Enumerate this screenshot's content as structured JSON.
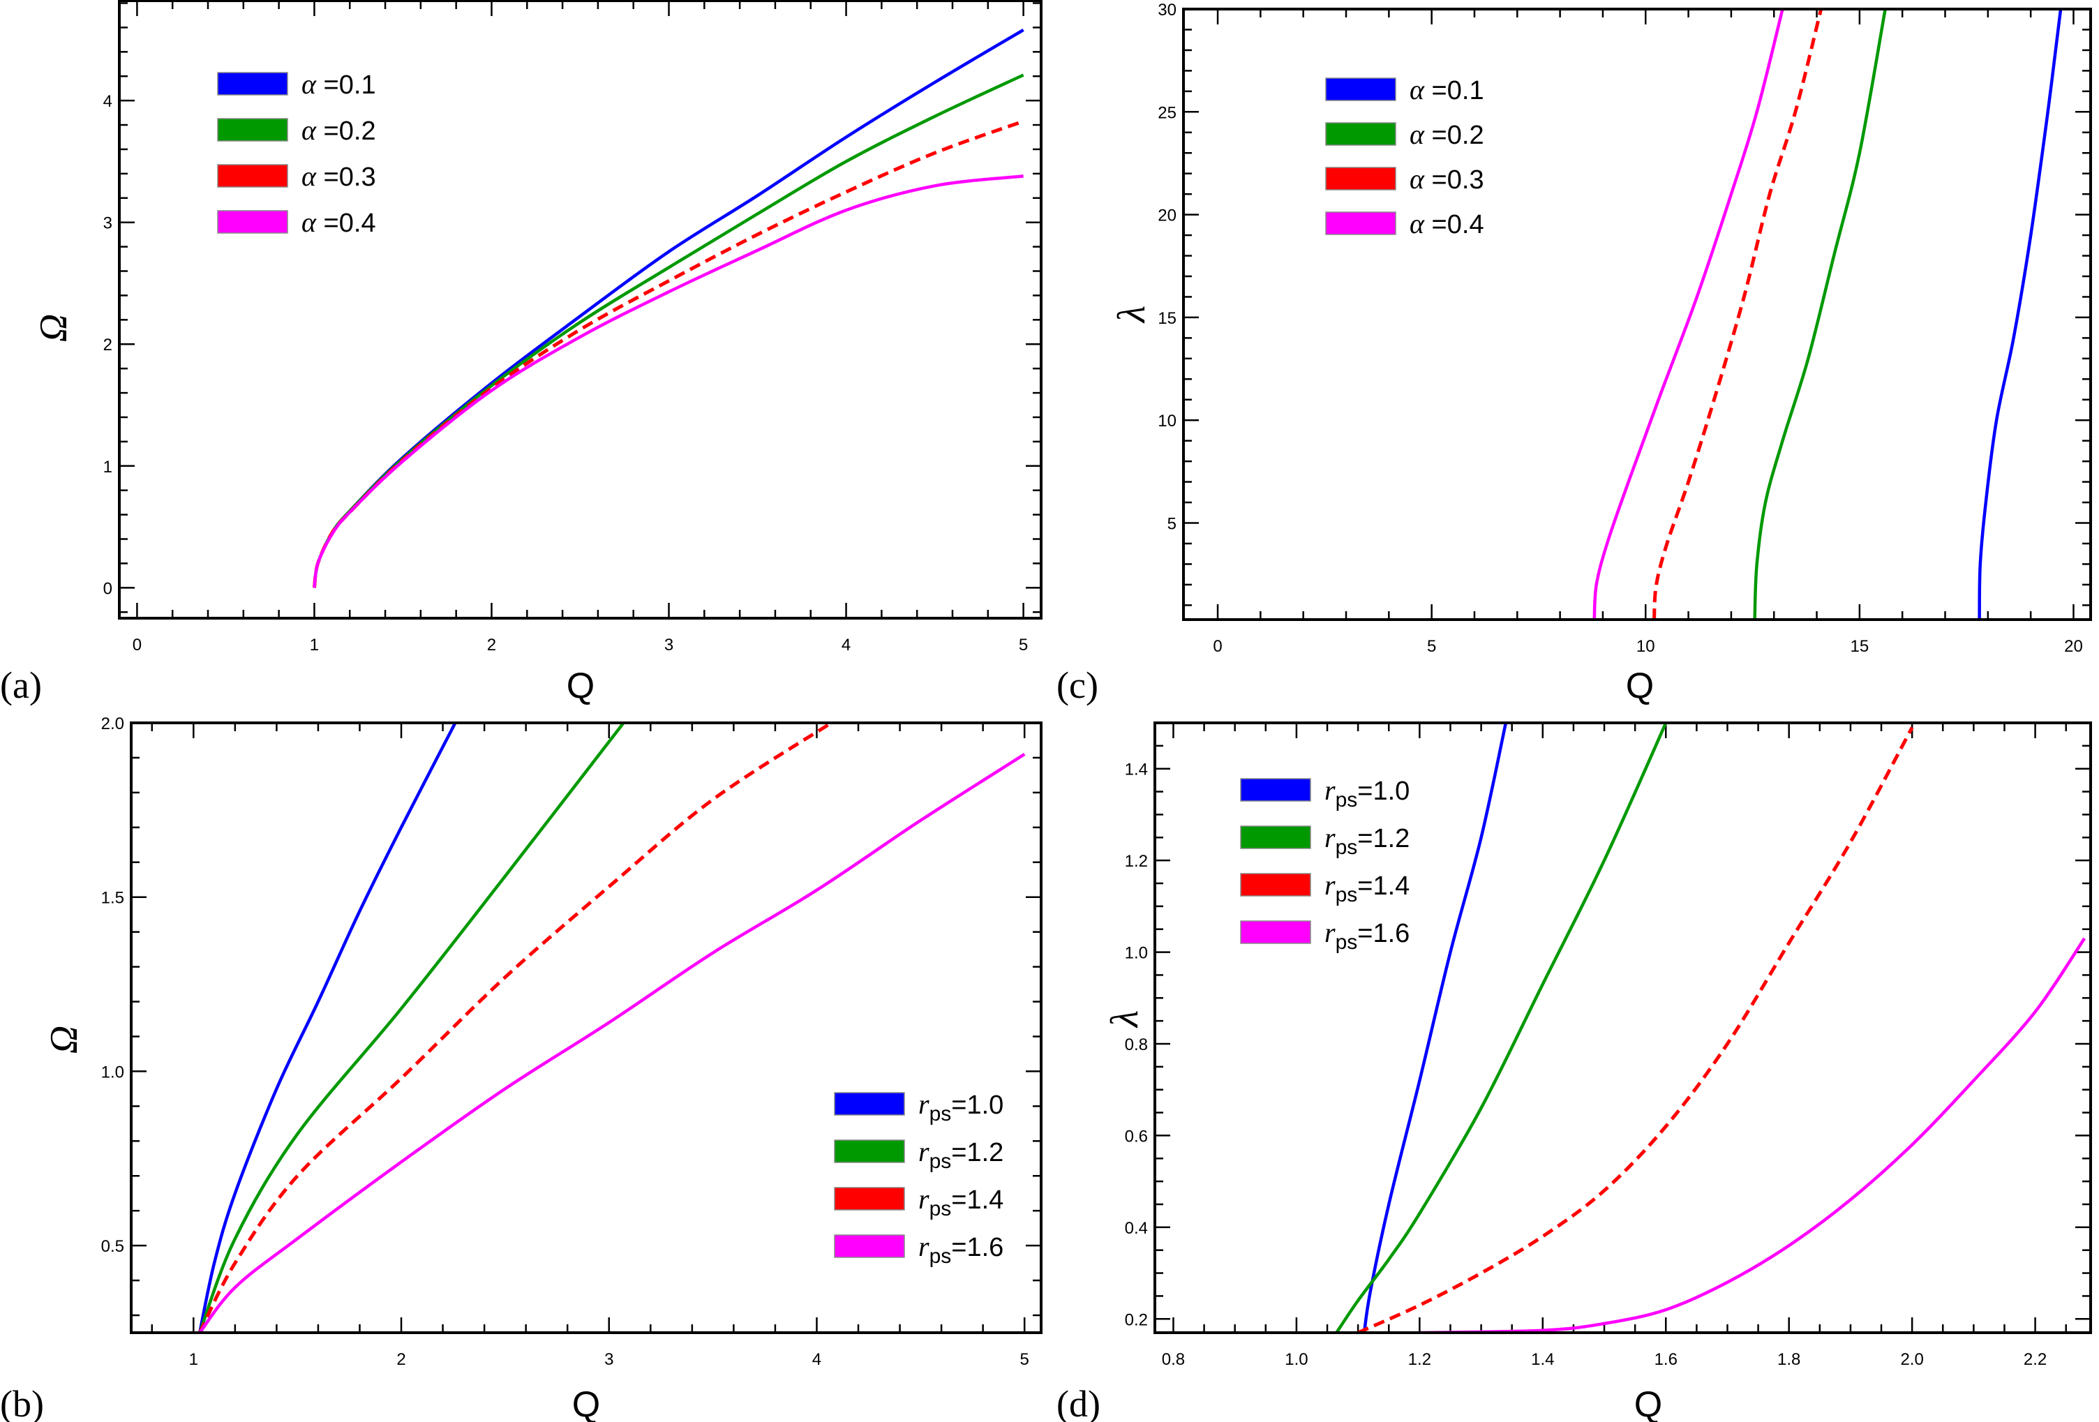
{
  "colors": {
    "blue": "#0000ff",
    "green": "#009900",
    "red": "#ff0000",
    "magenta": "#ff00ff",
    "axis": "#000000"
  },
  "chart_data": [
    {
      "panel_label": "(a)",
      "type": "line",
      "xlabel": "Q",
      "ylabel": "Ω",
      "xlim": [
        -0.1,
        5.1
      ],
      "ylim": [
        -0.25,
        4.82
      ],
      "xticks": [
        0,
        1,
        2,
        3,
        4,
        5
      ],
      "xtick_labels": [
        "0",
        "1",
        "2",
        "3",
        "4",
        "5"
      ],
      "yticks": [
        0,
        1,
        2,
        3,
        4
      ],
      "ytick_labels": [
        "0",
        "1",
        "2",
        "3",
        "4"
      ],
      "x_minor": 0.2,
      "y_minor": 0.2,
      "legend_position": "top-left",
      "legend_symbol": "α",
      "series": [
        {
          "name": "α =0.1",
          "symbol": "α",
          "value_text": " =0.1",
          "color": "#0000ff",
          "dashed": false,
          "x": [
            1,
            1.02,
            1.1,
            1.2,
            1.5,
            2,
            2.5,
            3,
            3.5,
            4,
            4.5,
            5
          ],
          "y": [
            0,
            0.2,
            0.45,
            0.63,
            1.07,
            1.68,
            2.23,
            2.76,
            3.22,
            3.7,
            4.15,
            4.58
          ]
        },
        {
          "name": "α =0.2",
          "symbol": "α",
          "value_text": " =0.2",
          "color": "#009900",
          "dashed": false,
          "x": [
            1,
            1.02,
            1.1,
            1.2,
            1.5,
            2,
            2.5,
            3,
            3.5,
            4,
            4.5,
            5
          ],
          "y": [
            0,
            0.2,
            0.45,
            0.63,
            1.06,
            1.66,
            2.18,
            2.63,
            3.07,
            3.5,
            3.87,
            4.21
          ]
        },
        {
          "name": "α =0.3",
          "symbol": "α",
          "value_text": " =0.3",
          "color": "#ff0000",
          "dashed": true,
          "x": [
            1,
            1.02,
            1.1,
            1.2,
            1.5,
            2,
            2.5,
            3,
            3.5,
            4,
            4.5,
            5
          ],
          "y": [
            0,
            0.2,
            0.45,
            0.62,
            1.05,
            1.64,
            2.12,
            2.52,
            2.9,
            3.25,
            3.57,
            3.83
          ]
        },
        {
          "name": "α =0.4",
          "symbol": "α",
          "value_text": " =0.4",
          "color": "#ff00ff",
          "dashed": false,
          "x": [
            1,
            1.02,
            1.1,
            1.2,
            1.5,
            2,
            2.5,
            3,
            3.5,
            4,
            4.5,
            5
          ],
          "y": [
            0,
            0.2,
            0.44,
            0.62,
            1.04,
            1.62,
            2.06,
            2.43,
            2.77,
            3.1,
            3.3,
            3.38
          ]
        }
      ]
    },
    {
      "panel_label": "(c)",
      "type": "line",
      "xlabel": "Q",
      "ylabel": "λ",
      "xlim": [
        -0.8,
        20.4
      ],
      "ylim": [
        0.3,
        30
      ],
      "xticks": [
        0,
        5,
        10,
        15,
        20
      ],
      "xtick_labels": [
        "0",
        "5",
        "10",
        "15",
        "20"
      ],
      "yticks": [
        5,
        10,
        15,
        20,
        25,
        30
      ],
      "ytick_labels": [
        "5",
        "10",
        "15",
        "20",
        "25",
        "30"
      ],
      "x_minor": 1,
      "y_minor": 1,
      "legend_position": "top-left",
      "legend_symbol": "α",
      "series": [
        {
          "name": "α =0.1",
          "symbol": "α",
          "value_text": " =0.1",
          "color": "#0000ff",
          "dashed": false,
          "x": [
            17.8,
            17.82,
            17.95,
            18.2,
            18.6,
            19,
            19.4,
            19.7
          ],
          "y": [
            0.3,
            3,
            6,
            10,
            14,
            19,
            25,
            30
          ]
        },
        {
          "name": "α =0.2",
          "symbol": "α",
          "value_text": " =0.2",
          "color": "#009900",
          "dashed": false,
          "x": [
            12.55,
            12.6,
            12.8,
            13.2,
            13.8,
            14.4,
            15,
            15.6
          ],
          "y": [
            0.3,
            3,
            6,
            9,
            13,
            18,
            23,
            30
          ]
        },
        {
          "name": "α =0.3",
          "symbol": "α",
          "value_text": " =0.3",
          "color": "#ff0000",
          "dashed": true,
          "x": [
            10.2,
            10.25,
            10.5,
            11,
            11.6,
            12.3,
            12.9,
            13.5,
            14.1
          ],
          "y": [
            0.3,
            2,
            4,
            7,
            11,
            16,
            21,
            25,
            30
          ]
        },
        {
          "name": "α =0.4",
          "symbol": "α",
          "value_text": " =0.4",
          "color": "#ff00ff",
          "dashed": false,
          "x": [
            8.8,
            8.85,
            9.1,
            9.6,
            10.3,
            11.2,
            12.0,
            12.6,
            13.2
          ],
          "y": [
            0.3,
            2,
            4,
            7,
            11,
            16,
            21,
            25,
            30
          ]
        }
      ]
    },
    {
      "panel_label": "(b)",
      "type": "line",
      "xlabel": "Q",
      "ylabel": "Ω",
      "xlim": [
        0.7,
        5.08
      ],
      "ylim": [
        0.25,
        2.0
      ],
      "xticks": [
        1,
        2,
        3,
        4,
        5
      ],
      "xtick_labels": [
        "1",
        "2",
        "3",
        "4",
        "5"
      ],
      "yticks": [
        0.5,
        1.0,
        1.5,
        2.0
      ],
      "ytick_labels": [
        "0.5",
        "1.0",
        "1.5",
        "2.0"
      ],
      "x_minor": 0.2,
      "y_minor": 0.1,
      "legend_position": "bottom-right",
      "legend_symbol": "r",
      "legend_subscript": "ps",
      "series": [
        {
          "name": "rps=1.0",
          "symbol": "r",
          "sub": "ps",
          "value_text": "=1.0",
          "color": "#0000ff",
          "dashed": false,
          "x": [
            1.03,
            1.1,
            1.2,
            1.4,
            1.6,
            1.8,
            2.0,
            2.26
          ],
          "y": [
            0.25,
            0.45,
            0.65,
            0.95,
            1.2,
            1.46,
            1.7,
            2.0
          ]
        },
        {
          "name": "rps=1.2",
          "symbol": "r",
          "sub": "ps",
          "value_text": "=1.2",
          "color": "#009900",
          "dashed": false,
          "x": [
            1.03,
            1.2,
            1.5,
            2,
            2.5,
            3.07
          ],
          "y": [
            0.25,
            0.52,
            0.82,
            1.18,
            1.56,
            2.0
          ]
        },
        {
          "name": "rps=1.4",
          "symbol": "r",
          "sub": "ps",
          "value_text": "=1.4",
          "color": "#ff0000",
          "dashed": true,
          "x": [
            1.03,
            1.2,
            1.5,
            2,
            2.5,
            3,
            3.5,
            4.07
          ],
          "y": [
            0.25,
            0.45,
            0.7,
            0.98,
            1.27,
            1.53,
            1.78,
            2.0
          ]
        },
        {
          "name": "rps=1.6",
          "symbol": "r",
          "sub": "ps",
          "value_text": "=1.6",
          "color": "#ff00ff",
          "dashed": false,
          "x": [
            1.03,
            1.2,
            1.5,
            2,
            2.5,
            3,
            3.5,
            4,
            4.5,
            5
          ],
          "y": [
            0.25,
            0.38,
            0.52,
            0.74,
            0.95,
            1.14,
            1.34,
            1.52,
            1.72,
            1.91
          ]
        }
      ]
    },
    {
      "panel_label": "(d)",
      "type": "line",
      "xlabel": "Q",
      "ylabel": "λ",
      "xlim": [
        0.77,
        2.29
      ],
      "ylim": [
        0.17,
        1.5
      ],
      "xticks": [
        0.8,
        1.0,
        1.2,
        1.4,
        1.6,
        1.8,
        2.0,
        2.2
      ],
      "xtick_labels": [
        "0.8",
        "1.0",
        "1.2",
        "1.4",
        "1.6",
        "1.8",
        "2.0",
        "2.2"
      ],
      "yticks": [
        0.2,
        0.4,
        0.6,
        0.8,
        1.0,
        1.2,
        1.4
      ],
      "ytick_labels": [
        "0.2",
        "0.4",
        "0.6",
        "0.8",
        "1.0",
        "1.2",
        "1.4"
      ],
      "x_minor": 0.05,
      "y_minor": 0.05,
      "legend_position": "top-left",
      "legend_symbol": "r",
      "legend_subscript": "ps",
      "series": [
        {
          "name": "rps=1.0",
          "symbol": "r",
          "sub": "ps",
          "value_text": "=1.0",
          "color": "#0000ff",
          "dashed": false,
          "x": [
            1.11,
            1.12,
            1.15,
            1.2,
            1.25,
            1.3,
            1.34
          ],
          "y": [
            0.17,
            0.26,
            0.45,
            0.72,
            1.0,
            1.25,
            1.5
          ]
        },
        {
          "name": "rps=1.2",
          "symbol": "r",
          "sub": "ps",
          "value_text": "=1.2",
          "color": "#009900",
          "dashed": false,
          "x": [
            1.065,
            1.1,
            1.15,
            1.2,
            1.3,
            1.4,
            1.5,
            1.6
          ],
          "y": [
            0.17,
            0.24,
            0.33,
            0.43,
            0.66,
            0.93,
            1.2,
            1.5
          ]
        },
        {
          "name": "rps=1.4",
          "symbol": "r",
          "sub": "ps",
          "value_text": "=1.4",
          "color": "#ff0000",
          "dashed": true,
          "x": [
            1.1,
            1.2,
            1.3,
            1.4,
            1.5,
            1.6,
            1.7,
            1.8,
            1.9,
            2.0
          ],
          "y": [
            0.17,
            0.23,
            0.3,
            0.38,
            0.48,
            0.62,
            0.8,
            1.02,
            1.24,
            1.49
          ]
        },
        {
          "name": "rps=1.6",
          "symbol": "r",
          "sub": "ps",
          "value_text": "=1.6",
          "color": "#ff00ff",
          "dashed": false,
          "x": [
            1.2,
            1.4,
            1.5,
            1.6,
            1.7,
            1.8,
            1.9,
            2.0,
            2.1,
            2.2,
            2.28
          ],
          "y": [
            0.17,
            0.175,
            0.19,
            0.22,
            0.28,
            0.36,
            0.46,
            0.58,
            0.72,
            0.87,
            1.03
          ]
        }
      ]
    }
  ]
}
